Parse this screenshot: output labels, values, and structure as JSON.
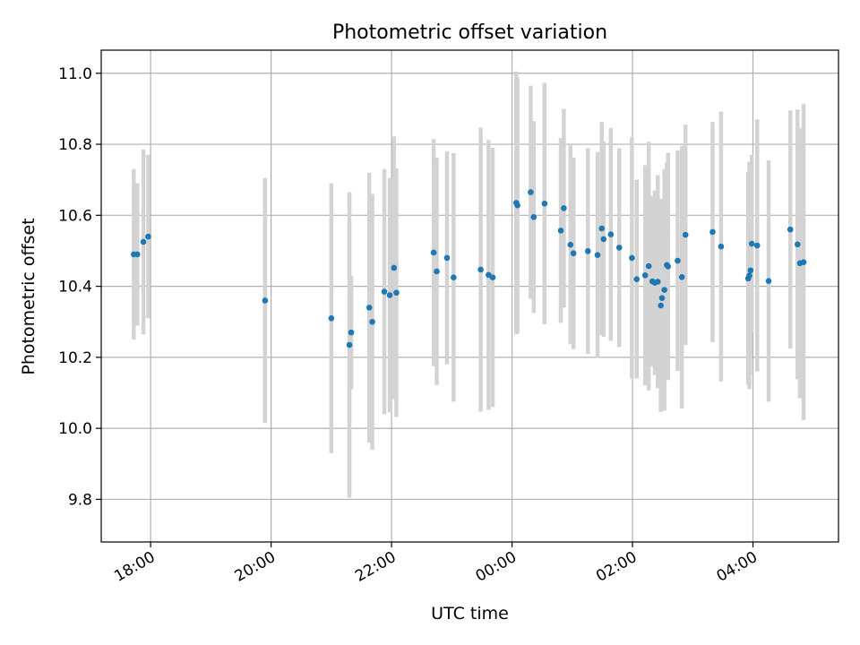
{
  "chart_data": {
    "type": "scatter",
    "title": "Photometric offset variation",
    "xlabel": "UTC time",
    "ylabel": "Photometric offset",
    "x_unit": "hours since 18:00 UTC",
    "xlim": [
      -0.82,
      11.42
    ],
    "ylim": [
      9.68,
      11.065
    ],
    "grid": true,
    "errorbar_color": "#d3d3d3",
    "marker_color": "#1f77b4",
    "x_ticks": [
      {
        "value": 0,
        "label": "18:00"
      },
      {
        "value": 2,
        "label": "20:00"
      },
      {
        "value": 4,
        "label": "22:00"
      },
      {
        "value": 6,
        "label": "00:00"
      },
      {
        "value": 8,
        "label": "02:00"
      },
      {
        "value": 10,
        "label": "04:00"
      }
    ],
    "y_ticks": [
      {
        "value": 9.8,
        "label": "9.8"
      },
      {
        "value": 10.0,
        "label": "10.0"
      },
      {
        "value": 10.2,
        "label": "10.2"
      },
      {
        "value": 10.4,
        "label": "10.4"
      },
      {
        "value": 10.6,
        "label": "10.6"
      },
      {
        "value": 10.8,
        "label": "10.8"
      },
      {
        "value": 11.0,
        "label": "11.0"
      }
    ],
    "series": [
      {
        "name": "offset",
        "x": [
          -0.28,
          -0.22,
          -0.12,
          -0.04,
          1.9,
          3.0,
          3.3,
          3.33,
          3.63,
          3.68,
          3.88,
          3.97,
          4.04,
          4.08,
          4.7,
          4.75,
          4.92,
          5.03,
          5.48,
          5.61,
          5.68,
          6.07,
          6.09,
          6.31,
          6.36,
          6.54,
          6.81,
          6.86,
          6.97,
          7.02,
          7.26,
          7.42,
          7.49,
          7.52,
          7.64,
          7.78,
          7.99,
          8.07,
          8.21,
          8.27,
          8.33,
          8.37,
          8.42,
          8.47,
          8.49,
          8.53,
          8.57,
          8.59,
          8.75,
          8.82,
          8.88,
          9.33,
          9.47,
          9.92,
          9.94,
          9.96,
          9.98,
          10.07,
          10.26,
          10.62,
          10.74,
          10.78,
          10.84
        ],
        "y": [
          10.49,
          10.49,
          10.525,
          10.54,
          10.36,
          10.31,
          10.235,
          10.27,
          10.34,
          10.3,
          10.385,
          10.375,
          10.452,
          10.382,
          10.495,
          10.442,
          10.48,
          10.425,
          10.447,
          10.432,
          10.425,
          10.635,
          10.628,
          10.665,
          10.595,
          10.633,
          10.557,
          10.62,
          10.517,
          10.493,
          10.499,
          10.488,
          10.563,
          10.533,
          10.546,
          10.509,
          10.48,
          10.42,
          10.431,
          10.457,
          10.414,
          10.41,
          10.413,
          10.346,
          10.367,
          10.39,
          10.46,
          10.456,
          10.472,
          10.426,
          10.545,
          10.553,
          10.512,
          10.422,
          10.43,
          10.445,
          10.52,
          10.515,
          10.415,
          10.56,
          10.518,
          10.465,
          10.468
        ],
        "yerr": [
          0.24,
          0.2,
          0.26,
          0.23,
          0.345,
          0.38,
          0.43,
          0.16,
          0.38,
          0.36,
          0.345,
          0.33,
          0.37,
          0.35,
          0.32,
          0.32,
          0.3,
          0.35,
          0.4,
          0.38,
          0.365,
          0.37,
          0.36,
          0.3,
          0.27,
          0.34,
          0.26,
          0.28,
          0.28,
          0.27,
          0.29,
          0.29,
          0.3,
          0.275,
          0.3,
          0.28,
          0.34,
          0.28,
          0.31,
          0.35,
          0.24,
          0.26,
          0.3,
          0.3,
          0.28,
          0.34,
          0.29,
          0.32,
          0.31,
          0.37,
          0.31,
          0.31,
          0.38,
          0.3,
          0.32,
          0.24,
          0.25,
          0.355,
          0.34,
          0.335,
          0.38,
          0.38,
          0.445
        ],
        "extra_errorbars": [
          {
            "x": 9.95,
            "low": 10.15,
            "high": 10.75
          }
        ]
      }
    ]
  }
}
